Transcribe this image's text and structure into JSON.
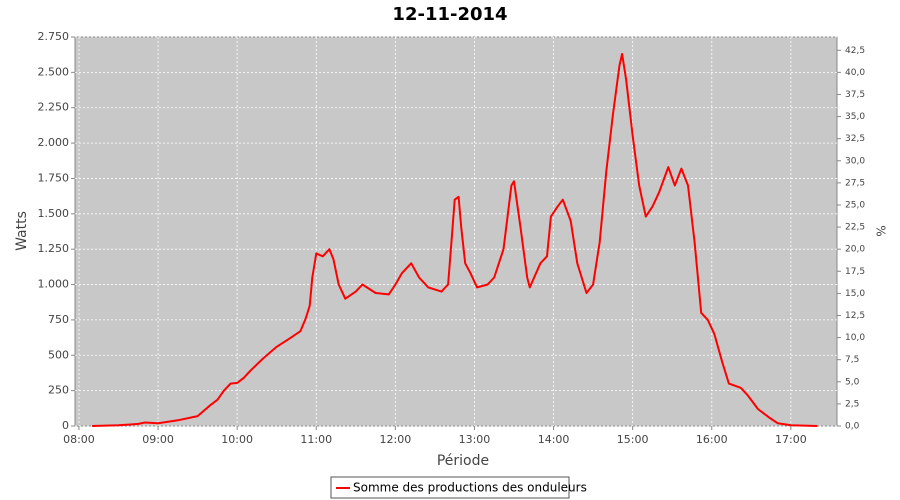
{
  "chart_data": {
    "type": "line",
    "title": "12-11-2014",
    "xlabel": "Période",
    "ylabel": "Watts",
    "y2label": "%",
    "x": [
      "08:10",
      "08:30",
      "08:45",
      "08:50",
      "09:00",
      "09:15",
      "09:30",
      "09:40",
      "09:45",
      "09:50",
      "09:55",
      "10:00",
      "10:05",
      "10:10",
      "10:20",
      "10:30",
      "10:40",
      "10:48",
      "10:52",
      "10:55",
      "10:57",
      "11:00",
      "11:05",
      "11:10",
      "11:13",
      "11:17",
      "11:22",
      "11:30",
      "11:35",
      "11:45",
      "11:55",
      "12:00",
      "12:05",
      "12:12",
      "12:18",
      "12:25",
      "12:35",
      "12:40",
      "12:43",
      "12:45",
      "12:48",
      "12:50",
      "12:53",
      "12:57",
      "13:02",
      "13:10",
      "13:15",
      "13:22",
      "13:28",
      "13:30",
      "13:35",
      "13:40",
      "13:42",
      "13:50",
      "13:55",
      "13:58",
      "14:03",
      "14:07",
      "14:13",
      "14:18",
      "14:25",
      "14:30",
      "14:35",
      "14:40",
      "14:45",
      "14:50",
      "14:52",
      "14:55",
      "15:00",
      "15:05",
      "15:10",
      "15:15",
      "15:20",
      "15:27",
      "15:32",
      "15:37",
      "15:42",
      "15:47",
      "15:52",
      "15:57",
      "16:02",
      "16:08",
      "16:13",
      "16:22",
      "16:27",
      "16:35",
      "16:45",
      "16:50",
      "17:00",
      "17:20"
    ],
    "series": [
      {
        "name": "Somme des productions des onduleurs",
        "color": "#ff0000",
        "values": [
          0,
          5,
          15,
          25,
          20,
          40,
          70,
          150,
          185,
          250,
          300,
          305,
          340,
          390,
          480,
          560,
          620,
          670,
          760,
          850,
          1050,
          1220,
          1200,
          1250,
          1180,
          1000,
          900,
          950,
          1000,
          940,
          930,
          1000,
          1080,
          1150,
          1050,
          980,
          950,
          1000,
          1350,
          1600,
          1620,
          1400,
          1150,
          1080,
          980,
          1000,
          1050,
          1250,
          1700,
          1730,
          1400,
          1050,
          980,
          1150,
          1200,
          1480,
          1550,
          1600,
          1450,
          1150,
          940,
          1000,
          1300,
          1800,
          2200,
          2550,
          2630,
          2450,
          2050,
          1700,
          1480,
          1550,
          1650,
          1830,
          1700,
          1820,
          1700,
          1300,
          800,
          750,
          650,
          450,
          300,
          270,
          220,
          120,
          50,
          20,
          5,
          0
        ]
      }
    ],
    "xlim": [
      "07:57",
      "17:35"
    ],
    "xticks": [
      "08:00",
      "09:00",
      "10:00",
      "11:00",
      "12:00",
      "13:00",
      "14:00",
      "15:00",
      "16:00",
      "17:00"
    ],
    "ylim": [
      0,
      2750
    ],
    "yticks": [
      0,
      250,
      500,
      750,
      {
        "value": 1000,
        "label": "1.000"
      },
      {
        "value": 1250,
        "label": "1.250"
      },
      {
        "value": 1500,
        "label": "1.500"
      },
      {
        "value": 1750,
        "label": "1.750"
      },
      {
        "value": 2000,
        "label": "2.000"
      },
      {
        "value": 2250,
        "label": "2.250"
      },
      {
        "value": 2500,
        "label": "2.500"
      },
      {
        "value": 2750,
        "label": "2.750"
      }
    ],
    "y2lim": [
      0,
      44
    ],
    "y2ticks": [
      {
        "value": 0,
        "label": "0,0"
      },
      {
        "value": 2.5,
        "label": "2,5"
      },
      {
        "value": 5,
        "label": "5,0"
      },
      {
        "value": 7.5,
        "label": "7,5"
      },
      {
        "value": 10,
        "label": "10,0"
      },
      {
        "value": 12.5,
        "label": "12,5"
      },
      {
        "value": 15,
        "label": "15,0"
      },
      {
        "value": 17.5,
        "label": "17,5"
      },
      {
        "value": 20,
        "label": "20,0"
      },
      {
        "value": 22.5,
        "label": "22,5"
      },
      {
        "value": 25,
        "label": "25,0"
      },
      {
        "value": 27.5,
        "label": "27,5"
      },
      {
        "value": 30,
        "label": "30,0"
      },
      {
        "value": 32.5,
        "label": "32,5"
      },
      {
        "value": 35,
        "label": "35,0"
      },
      {
        "value": 37.5,
        "label": "37,5"
      },
      {
        "value": 40,
        "label": "40,0"
      },
      {
        "value": 42.5,
        "label": "42,5"
      }
    ],
    "grid": true
  }
}
